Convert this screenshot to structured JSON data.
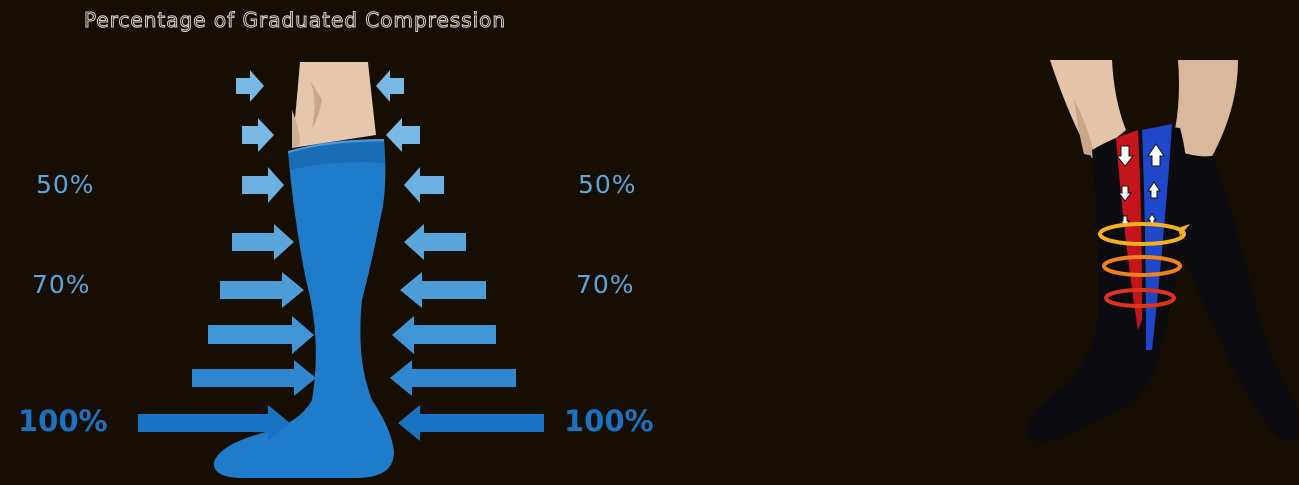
{
  "title": "Percentage of Graduated Compression",
  "labels": {
    "left_50": "50%",
    "right_50": "50%",
    "left_70": "70%",
    "right_70": "70%",
    "left_100": "100%",
    "right_100": "100%"
  },
  "colors": {
    "background": "#170e03",
    "sock_blue": "#1f7ccb",
    "arrow_light": "#7ab8e6",
    "arrow_mid": "#3f95d6",
    "arrow_dark": "#1a73c2",
    "skin": "#e4c7ad",
    "black_sock": "#0b0b10",
    "vein_red": "#c4141c",
    "vein_blue": "#1f47c9",
    "band_orange": "#f39a1c"
  }
}
